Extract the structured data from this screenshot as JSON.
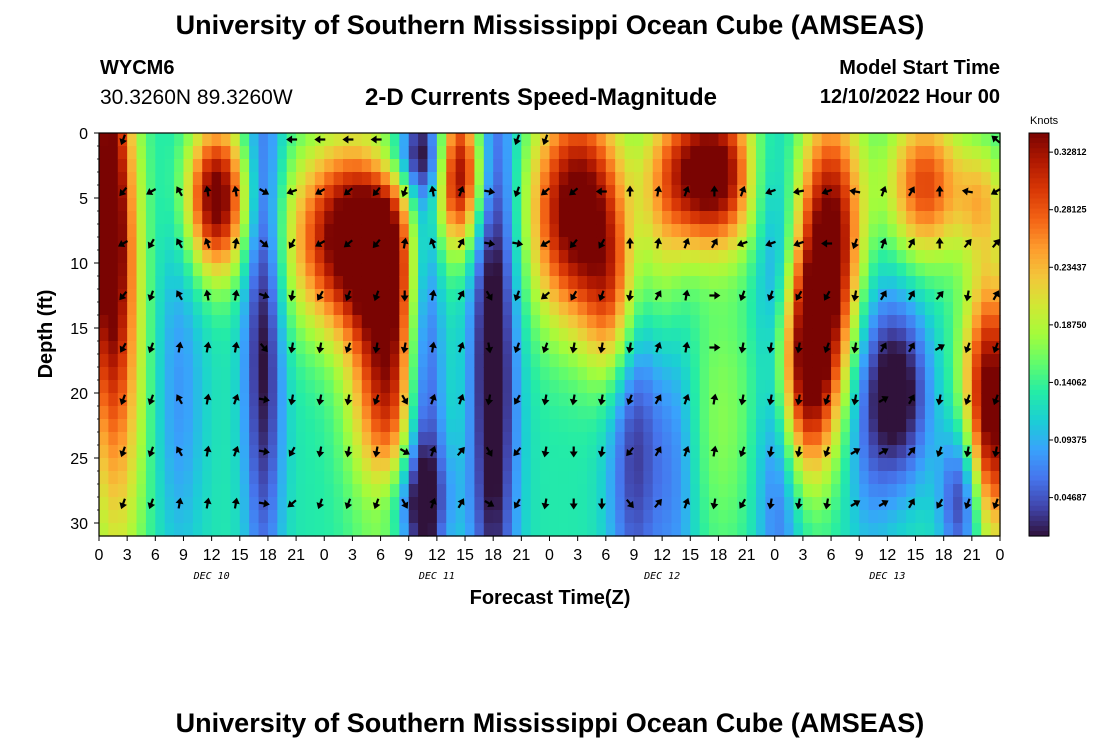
{
  "header": {
    "title": "University of Southern Mississippi Ocean Cube (AMSEAS)",
    "station_id": "WYCM6",
    "station_coords": "30.3260N  89.3260W",
    "subtitle": "2-D Currents Speed-Magnitude",
    "model_start_label": "Model Start Time",
    "model_start_value": "12/10/2022 Hour 00"
  },
  "footer": {
    "title": "University of Southern Mississippi Ocean Cube (AMSEAS)"
  },
  "colors": {
    "scale": [
      "#30123b",
      "#4145ab",
      "#4675ed",
      "#39a2fc",
      "#1bcfd4",
      "#24eca6",
      "#61fc6c",
      "#a4fc3b",
      "#d1e834",
      "#f3c63a",
      "#fe9b2d",
      "#f36315",
      "#d93806",
      "#b11901",
      "#7a0402"
    ]
  },
  "chart_data": {
    "type": "heatmap",
    "xlabel": "Forecast Time(Z)",
    "ylabel": "Depth (ft)",
    "x_range_hours": [
      0,
      96
    ],
    "y_range_ft": [
      0,
      31
    ],
    "y_ticks": [
      0,
      5,
      10,
      15,
      20,
      25,
      30
    ],
    "x_tick_labels": [
      "0",
      "3",
      "6",
      "9",
      "12",
      "15",
      "18",
      "21",
      "0",
      "3",
      "6",
      "9",
      "12",
      "15",
      "18",
      "21",
      "0",
      "3",
      "6",
      "9",
      "12",
      "15",
      "18",
      "21",
      "0",
      "3",
      "6",
      "9",
      "12",
      "15",
      "18",
      "21",
      "0"
    ],
    "day_labels": [
      {
        "label": "DEC 10",
        "hour": 12
      },
      {
        "label": "DEC 11",
        "hour": 36
      },
      {
        "label": "DEC 12",
        "hour": 60
      },
      {
        "label": "DEC 13",
        "hour": 84
      }
    ],
    "colorbar": {
      "title": "Knots",
      "min": 0.0156,
      "max": 0.3437,
      "tick_values": [
        0.32812,
        0.28125,
        0.23437,
        0.1875,
        0.14062,
        0.09375,
        0.04687
      ],
      "tick_labels": [
        "0.32812",
        "0.28125",
        "0.23437",
        "0.18750",
        "0.14062",
        "0.09375",
        "0.04687"
      ]
    },
    "speed_blobs": [
      {
        "hour": 1,
        "depth": 5,
        "sh": 1.8,
        "sd": 10,
        "amp": 0.22
      },
      {
        "hour": 2,
        "depth": 20,
        "sh": 2.2,
        "sd": 12,
        "amp": 0.1
      },
      {
        "hour": 12.5,
        "depth": 5,
        "sh": 2.2,
        "sd": 4,
        "amp": 0.23
      },
      {
        "hour": 8.5,
        "depth": 20,
        "sh": 2,
        "sd": 10,
        "amp": -0.05
      },
      {
        "hour": 17.5,
        "depth": 15,
        "sh": 1.5,
        "sd": 15,
        "amp": -0.12
      },
      {
        "hour": 27,
        "depth": 8,
        "sh": 4.5,
        "sd": 5,
        "amp": 0.24
      },
      {
        "hour": 31,
        "depth": 18,
        "sh": 2.8,
        "sd": 9,
        "amp": 0.2
      },
      {
        "hour": 33,
        "depth": 2,
        "sh": 3,
        "sd": 2,
        "amp": -0.08
      },
      {
        "hour": 33,
        "depth": 28,
        "sh": 3,
        "sd": 3,
        "amp": -0.08
      },
      {
        "hour": 34.5,
        "depth": 17,
        "sh": 1.6,
        "sd": 18,
        "amp": -0.15
      },
      {
        "hour": 38.5,
        "depth": 3,
        "sh": 1.8,
        "sd": 4,
        "amp": 0.22
      },
      {
        "hour": 42,
        "depth": 17,
        "sh": 1.8,
        "sd": 18,
        "amp": -0.14
      },
      {
        "hour": 51,
        "depth": 6,
        "sh": 3.5,
        "sd": 6,
        "amp": 0.24
      },
      {
        "hour": 55,
        "depth": 13,
        "sh": 2,
        "sd": 5,
        "amp": 0.12
      },
      {
        "hour": 57,
        "depth": 22,
        "sh": 2,
        "sd": 12,
        "amp": -0.1
      },
      {
        "hour": 61.5,
        "depth": 25,
        "sh": 1.8,
        "sd": 10,
        "amp": -0.06
      },
      {
        "hour": 65,
        "depth": 3,
        "sh": 4,
        "sd": 4,
        "amp": 0.25
      },
      {
        "hour": 60,
        "depth": 10,
        "sh": 2,
        "sd": 6,
        "amp": 0.06
      },
      {
        "hour": 66,
        "depth": 22,
        "sh": 3,
        "sd": 8,
        "amp": 0.04
      },
      {
        "hour": 72.5,
        "depth": 18,
        "sh": 1.8,
        "sd": 12,
        "amp": -0.13
      },
      {
        "hour": 75,
        "depth": 18,
        "sh": 2.5,
        "sd": 6,
        "amp": 0.25
      },
      {
        "hour": 78,
        "depth": 8,
        "sh": 2.5,
        "sd": 7,
        "amp": 0.22
      },
      {
        "hour": 70,
        "depth": 3,
        "sh": 1.5,
        "sd": 3,
        "amp": -0.05
      },
      {
        "hour": 82,
        "depth": 20,
        "sh": 2,
        "sd": 8,
        "amp": -0.07
      },
      {
        "hour": 85.5,
        "depth": 20,
        "sh": 2.2,
        "sd": 5,
        "amp": -0.12
      },
      {
        "hour": 92,
        "depth": 28,
        "sh": 1.6,
        "sd": 4,
        "amp": -0.12
      },
      {
        "hour": 88,
        "depth": 4,
        "sh": 2.8,
        "sd": 4,
        "amp": 0.16
      },
      {
        "hour": 95,
        "depth": 21,
        "sh": 2,
        "sd": 7,
        "amp": 0.24
      },
      {
        "hour": 94,
        "depth": 5,
        "sh": 1.8,
        "sd": 3,
        "amp": 0.08
      }
    ],
    "speed_base": 0.13,
    "arrow_hours": [
      3,
      6,
      9,
      12,
      15,
      18,
      21,
      24,
      27,
      30,
      33,
      36,
      39,
      42,
      45,
      48,
      51,
      54,
      57,
      60,
      63,
      66,
      69,
      72,
      75,
      78,
      81,
      84,
      87,
      90,
      93,
      96
    ],
    "arrow_depths": [
      0.5,
      4.5,
      8.5,
      12.5,
      16.5,
      20.5,
      24.5,
      28.5
    ],
    "arrow_directions_deg": [
      [
        200,
        220,
        240,
        220,
        210,
        200,
        200,
        200
      ],
      [
        null,
        240,
        210,
        200,
        200,
        200,
        200,
        200
      ],
      [
        null,
        330,
        330,
        330,
        10,
        330,
        330,
        10
      ],
      [
        null,
        350,
        340,
        350,
        10,
        10,
        10,
        10
      ],
      [
        null,
        350,
        10,
        10,
        10,
        20,
        20,
        10
      ],
      [
        null,
        120,
        130,
        110,
        140,
        100,
        100,
        100
      ],
      [
        270,
        250,
        210,
        190,
        190,
        190,
        210,
        230
      ],
      [
        270,
        240,
        240,
        210,
        190,
        190,
        190,
        200
      ],
      [
        270,
        230,
        230,
        200,
        200,
        190,
        190,
        200
      ],
      [
        270,
        220,
        220,
        200,
        190,
        200,
        190,
        200
      ],
      [
        null,
        200,
        10,
        180,
        190,
        150,
        120,
        150
      ],
      [
        null,
        350,
        340,
        10,
        10,
        20,
        20,
        20
      ],
      [
        null,
        20,
        30,
        30,
        20,
        20,
        40,
        30
      ],
      [
        null,
        100,
        100,
        150,
        170,
        190,
        150,
        120
      ],
      [
        200,
        200,
        100,
        200,
        200,
        210,
        220,
        210
      ],
      [
        200,
        230,
        240,
        230,
        200,
        190,
        190,
        190
      ],
      [
        null,
        230,
        220,
        210,
        190,
        190,
        180,
        180
      ],
      [
        null,
        270,
        210,
        200,
        190,
        190,
        190,
        180
      ],
      [
        null,
        360,
        360,
        190,
        190,
        200,
        220,
        140
      ],
      [
        null,
        10,
        10,
        30,
        20,
        30,
        30,
        40
      ],
      [
        null,
        20,
        20,
        10,
        10,
        20,
        20,
        20
      ],
      [
        null,
        360,
        30,
        90,
        90,
        10,
        10,
        190
      ],
      [
        null,
        20,
        250,
        200,
        190,
        190,
        200,
        210
      ],
      [
        null,
        250,
        250,
        200,
        190,
        190,
        190,
        190
      ],
      [
        null,
        260,
        250,
        210,
        190,
        190,
        190,
        190
      ],
      [
        null,
        250,
        270,
        210,
        200,
        200,
        200,
        190
      ],
      [
        null,
        280,
        200,
        190,
        190,
        190,
        60,
        60
      ],
      [
        null,
        20,
        20,
        30,
        30,
        60,
        60,
        60
      ],
      [
        null,
        30,
        30,
        30,
        30,
        30,
        40,
        30
      ],
      [
        null,
        360,
        360,
        40,
        60,
        190,
        200,
        210
      ],
      [
        null,
        280,
        40,
        190,
        200,
        200,
        190,
        200
      ],
      [
        310,
        240,
        40,
        30,
        200,
        200,
        190,
        200
      ]
    ]
  }
}
